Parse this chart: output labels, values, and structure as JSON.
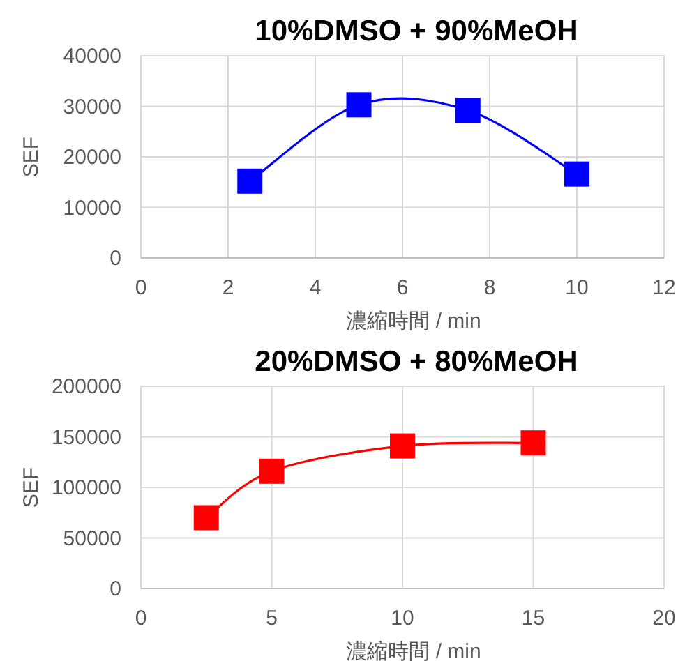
{
  "chart_data": [
    {
      "type": "line",
      "title": "10%DMSO + 90%MeOH",
      "xlabel": "濃縮時間 / min",
      "ylabel": "SEF",
      "x": [
        2.5,
        5,
        7.5,
        10
      ],
      "series": [
        {
          "color": "#0000ff",
          "values": [
            15200,
            30300,
            29200,
            16600
          ]
        }
      ],
      "xlim": [
        0,
        12
      ],
      "xticks": [
        0,
        2,
        4,
        6,
        8,
        10,
        12
      ],
      "ylim": [
        0,
        40000
      ],
      "yticks": [
        0,
        10000,
        20000,
        30000,
        40000
      ],
      "grid": true,
      "marker": "square"
    },
    {
      "type": "line",
      "title": "20%DMSO + 80%MeOH",
      "xlabel": "濃縮時間 / min",
      "ylabel": "SEF",
      "x": [
        2.5,
        5,
        10,
        15
      ],
      "series": [
        {
          "color": "#ff0000",
          "values": [
            70000,
            116000,
            141000,
            144000
          ]
        }
      ],
      "xlim": [
        0,
        20
      ],
      "xticks": [
        0,
        5,
        10,
        15,
        20
      ],
      "ylim": [
        0,
        200000
      ],
      "yticks": [
        0,
        50000,
        100000,
        150000,
        200000
      ],
      "grid": true,
      "marker": "square"
    }
  ]
}
